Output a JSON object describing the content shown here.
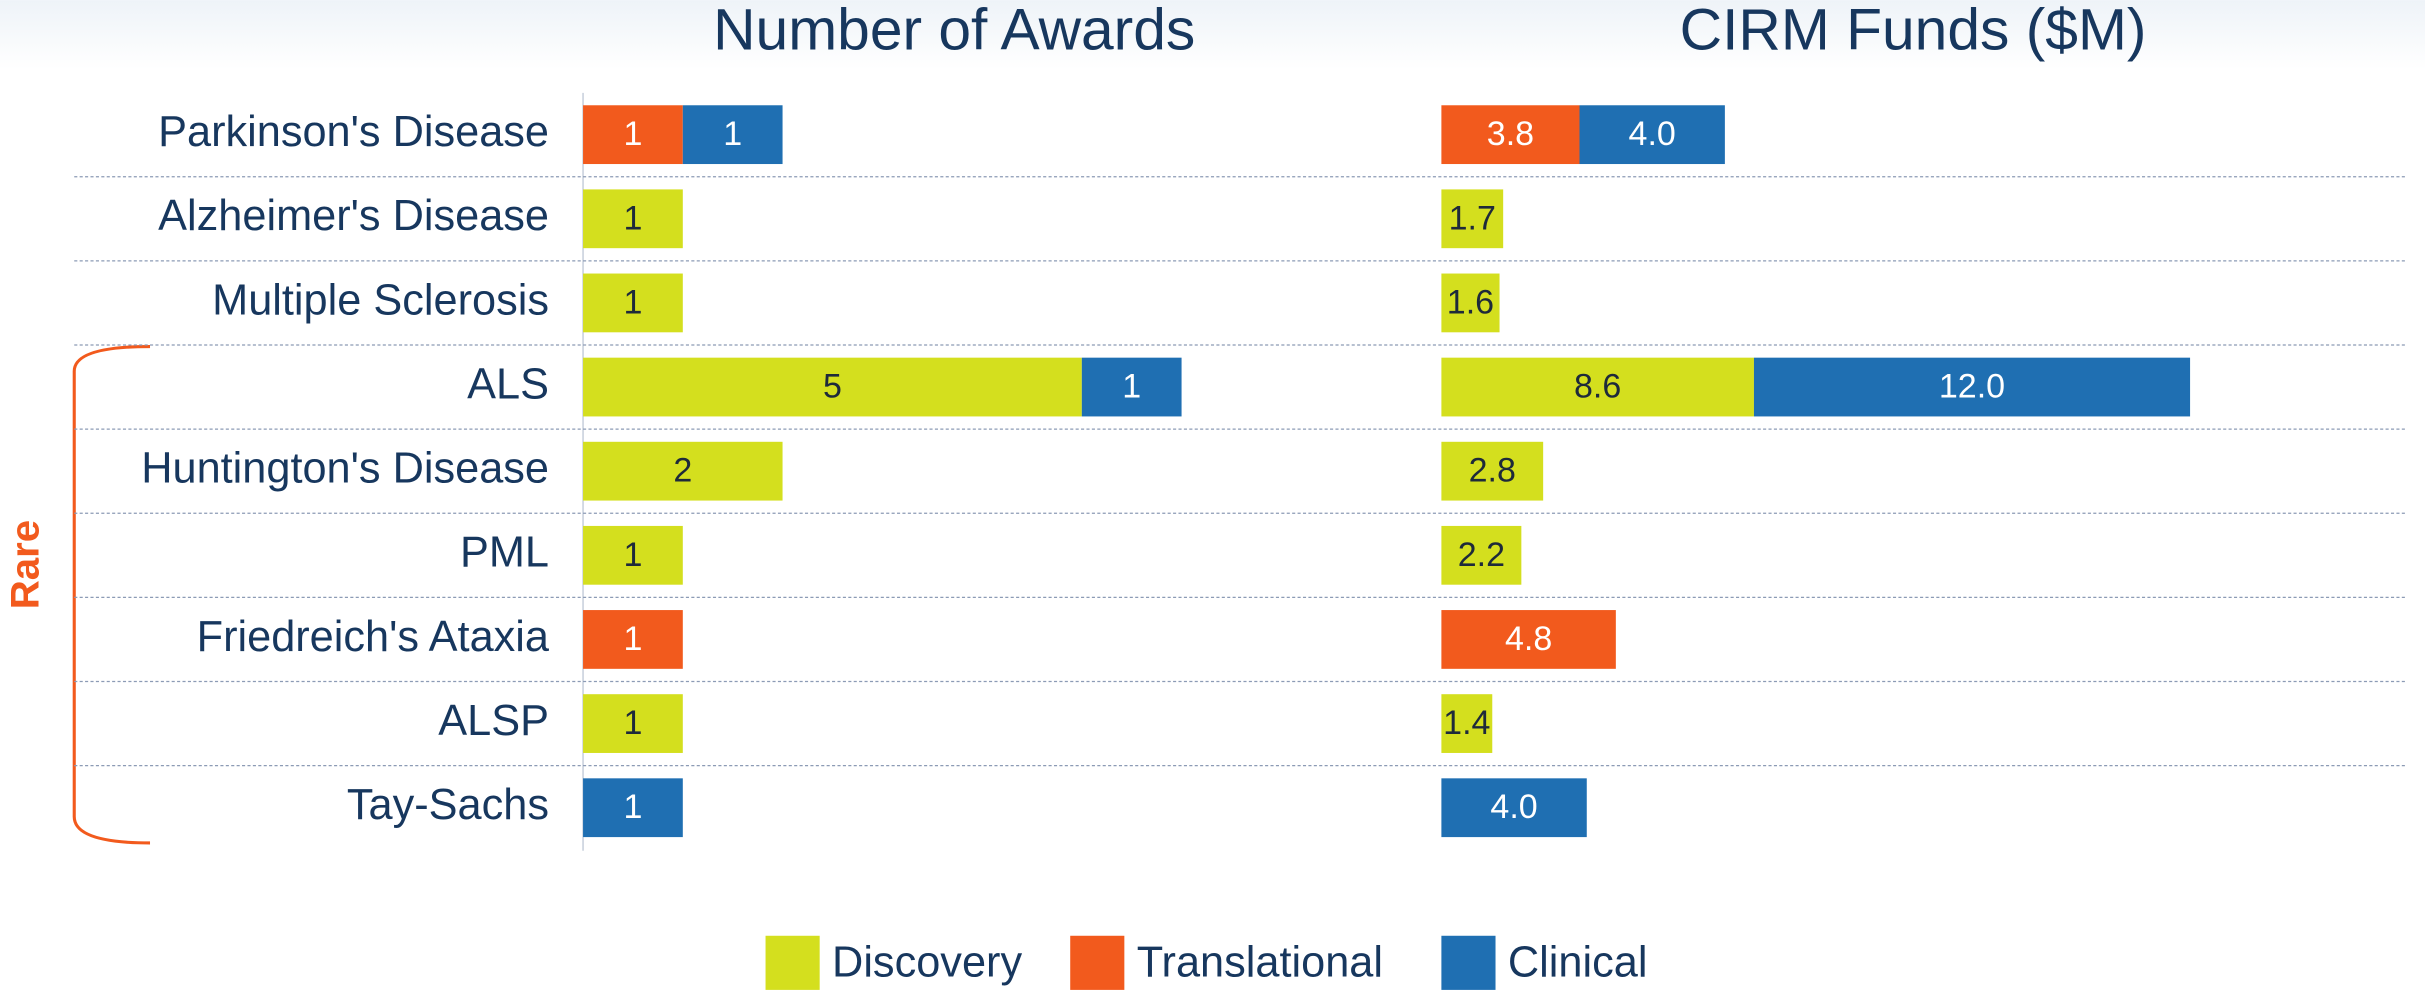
{
  "chart_data": {
    "type": "bar",
    "orientation": "horizontal",
    "stacked": true,
    "categories": [
      "Parkinson's Disease",
      "Alzheimer's Disease",
      "Multiple Sclerosis",
      "ALS",
      "Huntington's Disease",
      "PML",
      "Friedreich's Ataxia",
      "ALSP",
      "Tay-Sachs"
    ],
    "legend": [
      {
        "name": "Discovery",
        "color": "#d4df1e"
      },
      {
        "name": "Translational",
        "color": "#f25a1d"
      },
      {
        "name": "Clinical",
        "color": "#1f6fb2"
      }
    ],
    "annotation": "Rare",
    "panels": [
      {
        "title": "Number of Awards",
        "xlim": [
          0,
          8
        ],
        "series": [
          {
            "values": [
              null,
              1,
              1,
              5,
              2,
              1,
              null,
              1,
              null
            ]
          },
          {
            "values": [
              1,
              null,
              null,
              null,
              null,
              null,
              1,
              null,
              null
            ]
          },
          {
            "values": [
              1,
              null,
              null,
              1,
              null,
              null,
              null,
              null,
              1
            ]
          }
        ]
      },
      {
        "title": "CIRM Funds ($M)",
        "xlim": [
          0,
          24
        ],
        "series": [
          {
            "values": [
              null,
              1.7,
              1.6,
              8.6,
              2.8,
              2.2,
              null,
              1.4,
              null
            ]
          },
          {
            "values": [
              3.8,
              null,
              null,
              null,
              null,
              null,
              4.8,
              null,
              null
            ]
          },
          {
            "values": [
              4.0,
              null,
              null,
              12.0,
              null,
              null,
              null,
              null,
              4.0
            ],
            "value_labels": [
              "4.0",
              null,
              null,
              "12.0",
              null,
              null,
              null,
              null,
              "4.0"
            ]
          }
        ]
      }
    ]
  }
}
